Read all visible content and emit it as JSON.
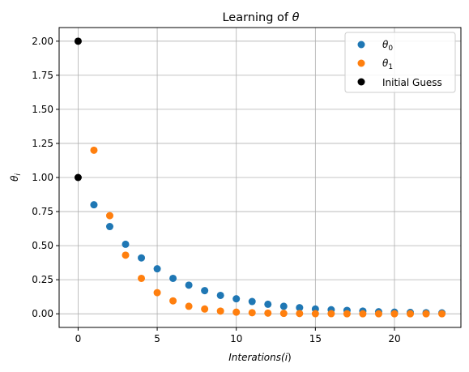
{
  "chart_data": {
    "type": "scatter",
    "title": "Learning of θ",
    "xlabel": "Interations(i)",
    "ylabel": "θi",
    "xlim": [
      -1.2,
      24.2
    ],
    "ylim": [
      -0.1,
      2.1
    ],
    "xticks": [
      0,
      5,
      10,
      15,
      20
    ],
    "xtick_labels": [
      "0",
      "5",
      "10",
      "15",
      "20"
    ],
    "yticks": [
      0.0,
      0.25,
      0.5,
      0.75,
      1.0,
      1.25,
      1.5,
      1.75,
      2.0
    ],
    "ytick_labels": [
      "0.00",
      "0.25",
      "0.50",
      "0.75",
      "1.00",
      "1.25",
      "1.50",
      "1.75",
      "2.00"
    ],
    "grid": true,
    "legend_position": "top-right",
    "series": [
      {
        "name": "θ0",
        "color": "#1f77b4",
        "x": [
          1,
          2,
          3,
          4,
          5,
          6,
          7,
          8,
          9,
          10,
          11,
          12,
          13,
          14,
          15,
          16,
          17,
          18,
          19,
          20,
          21,
          22,
          23
        ],
        "y": [
          0.8,
          0.64,
          0.51,
          0.41,
          0.33,
          0.26,
          0.21,
          0.17,
          0.135,
          0.11,
          0.09,
          0.07,
          0.055,
          0.045,
          0.035,
          0.03,
          0.025,
          0.02,
          0.015,
          0.012,
          0.01,
          0.008,
          0.007
        ]
      },
      {
        "name": "θ1",
        "color": "#ff7f0e",
        "x": [
          1,
          2,
          3,
          4,
          5,
          6,
          7,
          8,
          9,
          10,
          11,
          12,
          13,
          14,
          15,
          16,
          17,
          18,
          19,
          20,
          21,
          22,
          23
        ],
        "y": [
          1.2,
          0.72,
          0.43,
          0.26,
          0.155,
          0.095,
          0.055,
          0.035,
          0.02,
          0.012,
          0.008,
          0.005,
          0.003,
          0.002,
          0.001,
          0.001,
          0.0,
          0.0,
          0.0,
          0.0,
          0.0,
          0.0,
          0.0
        ]
      },
      {
        "name": "Initial Guess",
        "color": "#000000",
        "x": [
          0,
          0
        ],
        "y": [
          2.0,
          1.0
        ]
      }
    ]
  }
}
